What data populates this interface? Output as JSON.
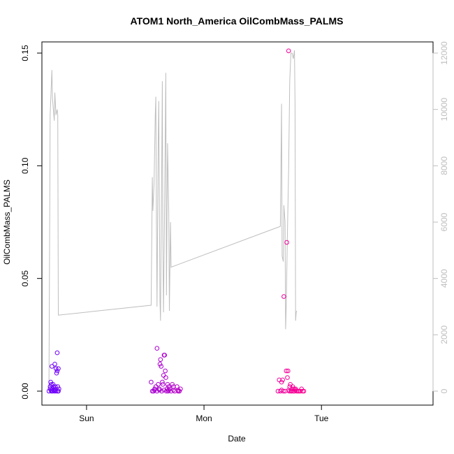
{
  "chart_data": {
    "type": "scatter",
    "title": "ATOM1 North_America OilCombMass_PALMS",
    "xlabel": "Date",
    "ylabel": "OilCombMass_PALMS",
    "x_ticks": [
      "Sun",
      "Mon",
      "Tue"
    ],
    "ylim": [
      0,
      0.15
    ],
    "y_ticks": [
      "0.00",
      "0.05",
      "0.10",
      "0.15"
    ],
    "y2lim": [
      0,
      12000
    ],
    "y2_ticks": [
      "0",
      "2000",
      "4000",
      "6000",
      "8000",
      "10000",
      "12000"
    ],
    "xlim_days": [
      -0.38,
      2.95
    ],
    "grid": false,
    "colors": {
      "secondary_line": "#bebebe",
      "points_start": "#6a00ff",
      "points_end": "#ff0090",
      "axis": "#000000",
      "right_axis": "#bebebe"
    },
    "series": [
      {
        "type": "scatter",
        "axis": "left",
        "points": [
          [
            -0.32,
            0.0
          ],
          [
            -0.31,
            0.002
          ],
          [
            -0.305,
            0.004
          ],
          [
            -0.3,
            0.003
          ],
          [
            -0.3,
            0.0
          ],
          [
            -0.295,
            0.011
          ],
          [
            -0.29,
            0.001
          ],
          [
            -0.29,
            0.0
          ],
          [
            -0.285,
            0.003
          ],
          [
            -0.28,
            0.002
          ],
          [
            -0.275,
            0.0
          ],
          [
            -0.27,
            0.001
          ],
          [
            -0.27,
            0.012
          ],
          [
            -0.265,
            0.002
          ],
          [
            -0.26,
            0.0
          ],
          [
            -0.26,
            0.01
          ],
          [
            -0.255,
            0.008
          ],
          [
            -0.25,
            0.009
          ],
          [
            -0.25,
            0.017
          ],
          [
            -0.245,
            0.0
          ],
          [
            -0.245,
            0.002
          ],
          [
            -0.24,
            0.01
          ],
          [
            -0.24,
            0.0
          ],
          [
            -0.235,
            0.001
          ],
          [
            -0.31,
            0.001
          ],
          [
            -0.3,
            0.0005
          ],
          [
            -0.28,
            0.0005
          ],
          [
            -0.265,
            0.0005
          ],
          [
            0.55,
            0.004
          ],
          [
            0.56,
            0.0
          ],
          [
            0.57,
            0.0
          ],
          [
            0.58,
            0.001
          ],
          [
            0.59,
            0.002
          ],
          [
            0.6,
            0.019
          ],
          [
            0.6,
            0.0
          ],
          [
            0.61,
            0.003
          ],
          [
            0.62,
            0.001
          ],
          [
            0.625,
            0.012
          ],
          [
            0.63,
            0.014
          ],
          [
            0.635,
            0.011
          ],
          [
            0.64,
            0.0
          ],
          [
            0.645,
            0.004
          ],
          [
            0.65,
            0.003
          ],
          [
            0.655,
            0.007
          ],
          [
            0.66,
            0.016
          ],
          [
            0.665,
            0.016
          ],
          [
            0.67,
            0.009
          ],
          [
            0.675,
            0.006
          ],
          [
            0.68,
            0.0
          ],
          [
            0.685,
            0.001
          ],
          [
            0.69,
            0.003
          ],
          [
            0.695,
            0.0
          ],
          [
            0.7,
            0.002
          ],
          [
            0.71,
            0.001
          ],
          [
            0.72,
            0.0
          ],
          [
            0.73,
            0.003
          ],
          [
            0.74,
            0.002
          ],
          [
            0.75,
            0.0
          ],
          [
            0.77,
            0.002
          ],
          [
            0.78,
            0.0
          ],
          [
            0.79,
            0.0
          ],
          [
            0.8,
            0.001
          ],
          [
            0.58,
            0.0005
          ],
          [
            0.62,
            0.0005
          ],
          [
            0.66,
            0.0005
          ],
          [
            0.7,
            0.0005
          ],
          [
            0.74,
            0.0005
          ],
          [
            0.78,
            0.0005
          ],
          [
            1.63,
            0.0
          ],
          [
            1.64,
            0.005
          ],
          [
            1.65,
            0.0
          ],
          [
            1.66,
            0.004
          ],
          [
            1.67,
            0.005
          ],
          [
            1.675,
            0.0
          ],
          [
            1.68,
            0.042
          ],
          [
            1.69,
            0.0
          ],
          [
            1.7,
            0.009
          ],
          [
            1.705,
            0.066
          ],
          [
            1.71,
            0.006
          ],
          [
            1.715,
            0.009
          ],
          [
            1.72,
            0.151
          ],
          [
            1.725,
            0.0
          ],
          [
            1.73,
            0.002
          ],
          [
            1.735,
            0.003
          ],
          [
            1.74,
            0.0
          ],
          [
            1.745,
            0.0
          ],
          [
            1.75,
            0.001
          ],
          [
            1.755,
            0.002
          ],
          [
            1.76,
            0.0
          ],
          [
            1.765,
            0.001
          ],
          [
            1.77,
            0.0
          ],
          [
            1.78,
            0.001
          ],
          [
            1.79,
            0.0
          ],
          [
            1.8,
            0.0
          ],
          [
            1.81,
            0.0
          ],
          [
            1.82,
            0.0
          ],
          [
            1.83,
            0.001
          ],
          [
            1.84,
            0.0
          ],
          [
            1.85,
            0.0
          ],
          [
            1.66,
            0.0005
          ],
          [
            1.72,
            0.0005
          ],
          [
            1.78,
            0.0005
          ]
        ]
      },
      {
        "type": "line",
        "axis": "right",
        "points": [
          [
            -0.32,
            100
          ],
          [
            -0.31,
            9800
          ],
          [
            -0.295,
            11400
          ],
          [
            -0.29,
            10400
          ],
          [
            -0.275,
            9600
          ],
          [
            -0.27,
            10600
          ],
          [
            -0.26,
            9800
          ],
          [
            -0.25,
            10000
          ],
          [
            -0.245,
            9800
          ],
          [
            -0.24,
            2700
          ],
          [
            -0.235,
            2700
          ],
          [
            0.55,
            3050
          ],
          [
            0.56,
            7600
          ],
          [
            0.565,
            6400
          ],
          [
            0.575,
            7400
          ],
          [
            0.585,
            9800
          ],
          [
            0.59,
            10450
          ],
          [
            0.595,
            6000
          ],
          [
            0.6,
            3000
          ],
          [
            0.61,
            8800
          ],
          [
            0.615,
            10300
          ],
          [
            0.625,
            3200
          ],
          [
            0.63,
            2500
          ],
          [
            0.64,
            7800
          ],
          [
            0.645,
            11000
          ],
          [
            0.65,
            5200
          ],
          [
            0.655,
            2800
          ],
          [
            0.665,
            6600
          ],
          [
            0.675,
            11300
          ],
          [
            0.68,
            3400
          ],
          [
            0.69,
            8800
          ],
          [
            0.7,
            6400
          ],
          [
            0.705,
            2850
          ],
          [
            0.715,
            6000
          ],
          [
            0.72,
            4400
          ],
          [
            1.65,
            5850
          ],
          [
            1.66,
            10200
          ],
          [
            1.665,
            4800
          ],
          [
            1.675,
            4600
          ],
          [
            1.68,
            6600
          ],
          [
            1.69,
            6000
          ],
          [
            1.695,
            2200
          ],
          [
            1.7,
            3000
          ],
          [
            1.71,
            5600
          ],
          [
            1.72,
            7800
          ],
          [
            1.73,
            11000
          ],
          [
            1.74,
            12000
          ],
          [
            1.75,
            12000
          ],
          [
            1.76,
            11800
          ],
          [
            1.77,
            12100
          ],
          [
            1.775,
            10200
          ],
          [
            1.78,
            2500
          ],
          [
            1.785,
            2800
          ],
          [
            1.79,
            2850
          ]
        ]
      }
    ]
  }
}
